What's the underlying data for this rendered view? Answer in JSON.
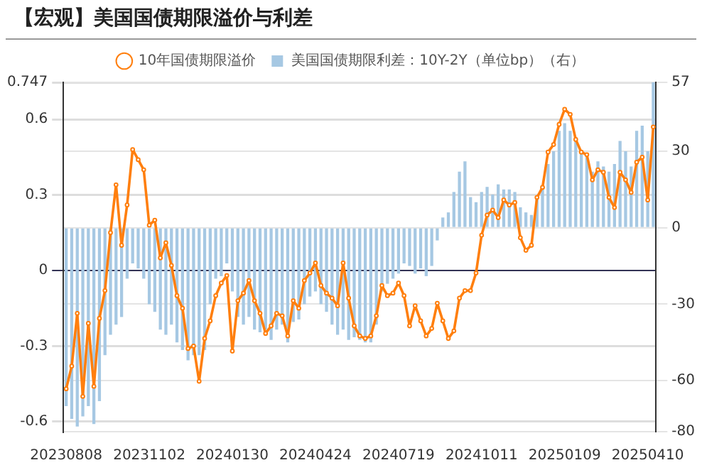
{
  "chart_data": {
    "type": "bar",
    "title": "【宏观】美国国债期限溢价与利差",
    "categories": [
      "20230808",
      null,
      null,
      null,
      null,
      null,
      null,
      null,
      null,
      null,
      null,
      null,
      null,
      null,
      null,
      "20231102",
      null,
      null,
      null,
      null,
      null,
      null,
      null,
      null,
      null,
      null,
      null,
      null,
      null,
      null,
      "20240130",
      null,
      null,
      null,
      null,
      null,
      null,
      null,
      null,
      null,
      null,
      null,
      null,
      null,
      null,
      "20240424",
      null,
      null,
      null,
      null,
      null,
      null,
      null,
      null,
      null,
      null,
      null,
      null,
      null,
      null,
      "20240719",
      null,
      null,
      null,
      null,
      null,
      null,
      null,
      null,
      null,
      null,
      null,
      null,
      null,
      null,
      "20241011",
      null,
      null,
      null,
      null,
      null,
      null,
      null,
      null,
      null,
      null,
      null,
      null,
      null,
      null,
      "20250109",
      null,
      null,
      null,
      null,
      null,
      null,
      null,
      null,
      null,
      null,
      null,
      null,
      null,
      null,
      "20250410",
      null
    ],
    "series": [
      {
        "name": "10年国债期限溢价",
        "type": "line",
        "color": "#ff7f0e",
        "values": [
          -0.47,
          -0.38,
          -0.17,
          -0.5,
          -0.21,
          -0.46,
          -0.19,
          -0.08,
          0.15,
          0.34,
          0.1,
          0.26,
          0.48,
          0.44,
          0.4,
          0.18,
          0.2,
          0.05,
          0.11,
          0.02,
          -0.1,
          -0.15,
          -0.31,
          -0.3,
          -0.44,
          -0.27,
          -0.2,
          -0.1,
          -0.05,
          -0.02,
          -0.32,
          -0.12,
          -0.09,
          -0.04,
          -0.12,
          -0.17,
          -0.25,
          -0.22,
          -0.17,
          -0.18,
          -0.26,
          -0.12,
          -0.15,
          -0.04,
          -0.01,
          0.03,
          -0.06,
          -0.09,
          -0.11,
          -0.14,
          0.03,
          -0.11,
          -0.22,
          -0.26,
          -0.27,
          -0.26,
          -0.18,
          -0.06,
          -0.1,
          -0.09,
          -0.05,
          -0.1,
          -0.22,
          -0.14,
          -0.2,
          -0.26,
          -0.23,
          -0.13,
          -0.2,
          -0.27,
          -0.24,
          -0.11,
          -0.08,
          -0.08,
          -0.01,
          0.14,
          0.22,
          0.24,
          0.21,
          0.28,
          0.26,
          0.27,
          0.13,
          0.08,
          0.1,
          0.29,
          0.33,
          0.47,
          0.5,
          0.58,
          0.64,
          0.62,
          0.52,
          0.47,
          0.46,
          0.36,
          0.4,
          0.39,
          0.29,
          0.25,
          0.39,
          0.36,
          0.31,
          0.43,
          0.45,
          0.28,
          0.57
        ]
      },
      {
        "name": "美国国债期限利差：10Y-2Y（单位bp）（右）",
        "axis": "y2",
        "color": "#a6c8e3",
        "values": [
          -70,
          -75,
          -78,
          -74,
          -70,
          -77,
          -68,
          -50,
          -42,
          -38,
          -35,
          -20,
          -14,
          -16,
          -20,
          -30,
          -33,
          -40,
          -42,
          -38,
          -45,
          -48,
          -52,
          -50,
          -50,
          -48,
          -30,
          -20,
          -19,
          -14,
          -25,
          -35,
          -38,
          -35,
          -40,
          -41,
          -40,
          -44,
          -40,
          -38,
          -45,
          -37,
          -36,
          -30,
          -27,
          -25,
          -30,
          -33,
          -38,
          -42,
          -40,
          -44,
          -43,
          -44,
          -45,
          -45,
          -38,
          -25,
          -22,
          -20,
          -18,
          -14,
          -15,
          -18,
          -16,
          -19,
          -15,
          -5,
          4,
          6,
          14,
          22,
          26,
          12,
          10,
          14,
          16,
          13,
          17,
          15,
          15,
          14,
          8,
          6,
          5,
          12,
          15,
          25,
          30,
          38,
          41,
          38,
          35,
          30,
          28,
          22,
          26,
          24,
          22,
          25,
          34,
          30,
          24,
          38,
          40,
          30,
          57
        ]
      }
    ],
    "ylim": [
      -0.64,
      0.747
    ],
    "yticks": [
      -0.6,
      -0.3,
      0,
      0.3,
      0.6,
      0.747
    ],
    "y2lim": [
      -80,
      57
    ],
    "y2ticks": [
      -80,
      -60,
      -30,
      0,
      30,
      57
    ],
    "grid": "y",
    "legend": "top",
    "marker": "circle"
  }
}
